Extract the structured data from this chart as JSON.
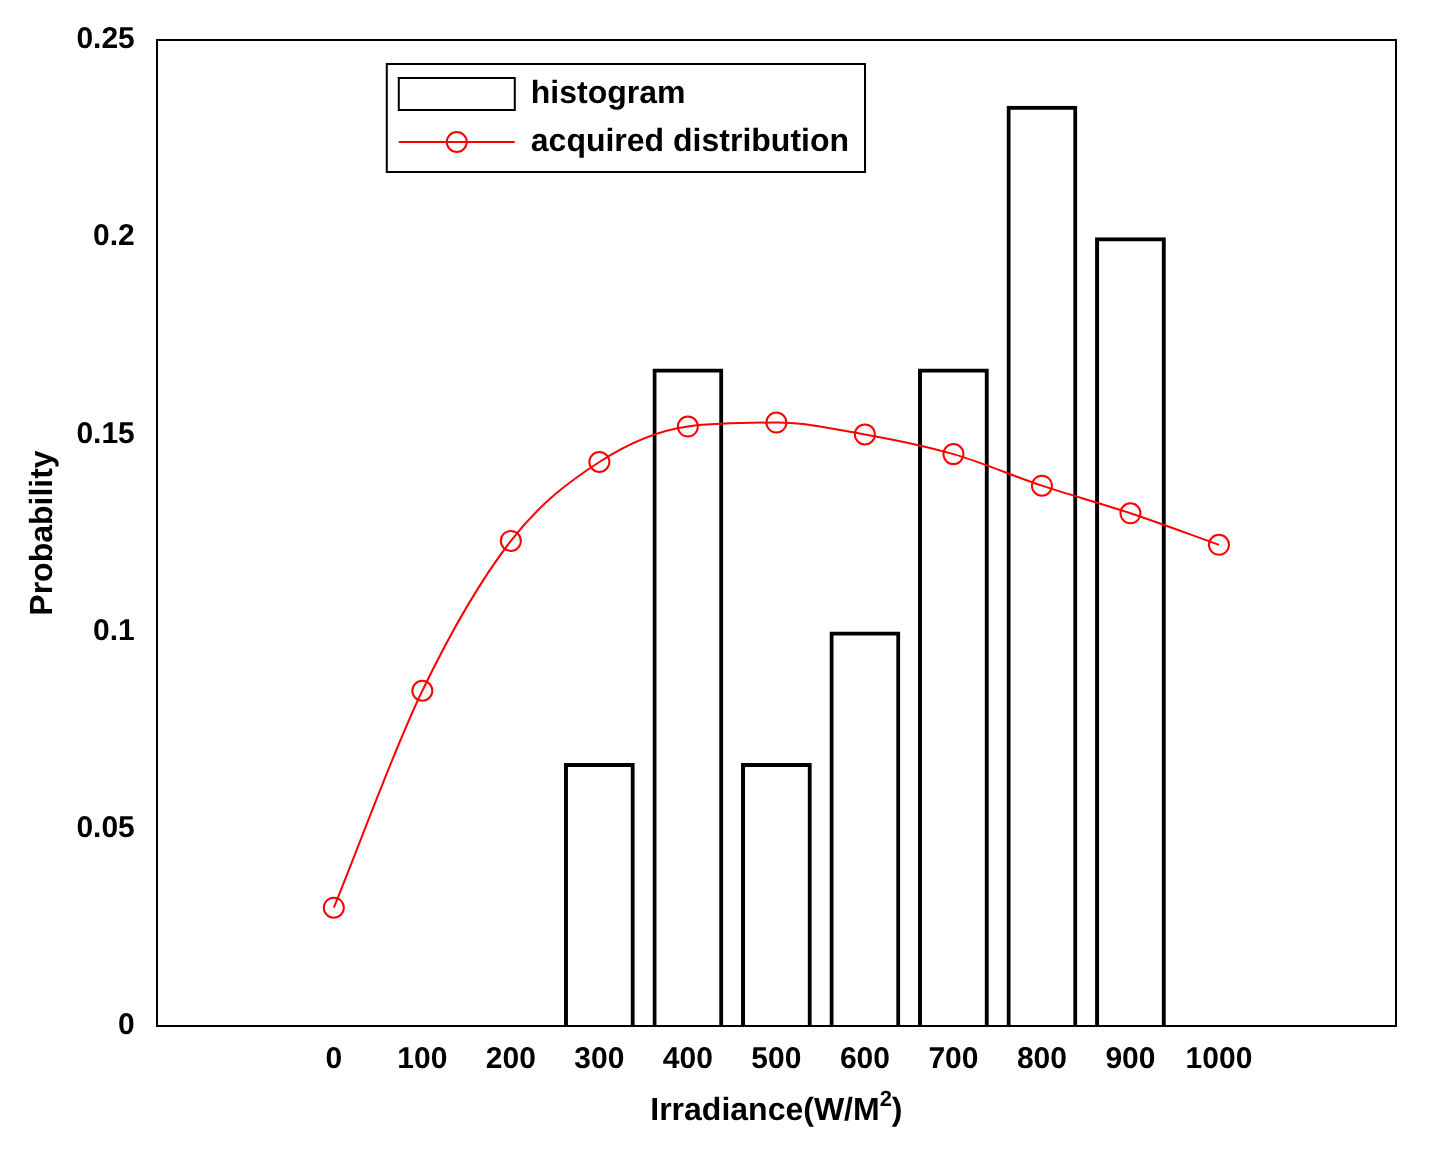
{
  "chart_data": {
    "type": "bar",
    "xlabel": "Irradiance(W/M$^{2}$)",
    "ylabel": "Probability",
    "xlim": [
      -200,
      1200
    ],
    "xticks": [
      0,
      100,
      200,
      300,
      400,
      500,
      600,
      700,
      800,
      900,
      1000
    ],
    "ylim": [
      0,
      0.25
    ],
    "yticks": [
      0,
      0.05,
      0.1,
      0.15,
      0.2,
      0.25
    ],
    "grid": false,
    "legend": "top left",
    "series": [
      {
        "name": "histogram",
        "color": "#000000",
        "x": [
          300,
          400,
          500,
          600,
          700,
          800,
          900
        ],
        "values": [
          0.0667,
          0.1667,
          0.0667,
          0.1,
          0.1667,
          0.2333,
          0.2
        ]
      },
      {
        "name": "acquired distribution",
        "type": "line",
        "color": "#ff0000",
        "marker": "circle",
        "x": [
          0,
          100,
          200,
          300,
          400,
          500,
          600,
          700,
          800,
          900,
          1000
        ],
        "values": [
          0.03,
          0.085,
          0.123,
          0.143,
          0.152,
          0.153,
          0.15,
          0.145,
          0.137,
          0.13,
          0.122
        ]
      }
    ]
  }
}
